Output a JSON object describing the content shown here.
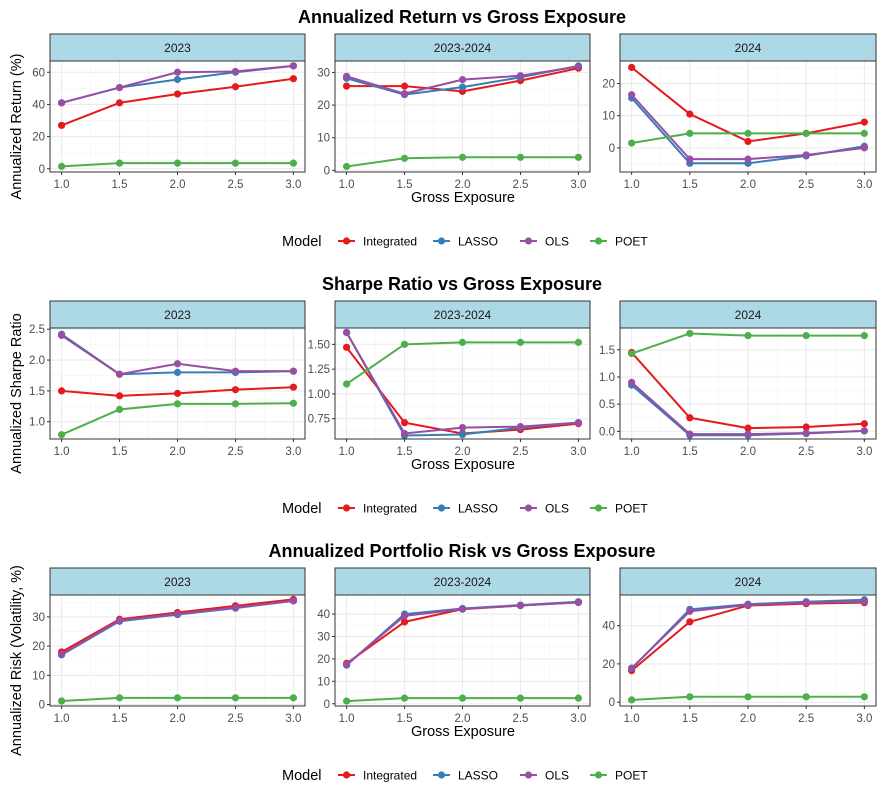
{
  "chart_data": [
    {
      "type": "line",
      "title": "Annualized Return vs Gross Exposure",
      "xlabel": "Gross Exposure",
      "ylabel": "Annualized Return (%)",
      "legend_title": "Model",
      "x": [
        1.0,
        1.5,
        2.0,
        2.5,
        3.0
      ],
      "x_tick_labels": [
        "1.0",
        "1.5",
        "2.0",
        "2.5",
        "3.0"
      ],
      "panels": [
        {
          "label": "2023",
          "ylim": [
            -2,
            67
          ],
          "y_ticks": [
            0,
            20,
            40,
            60
          ],
          "series": [
            {
              "name": "Integrated",
              "values": [
                27,
                41,
                46.5,
                51,
                56
              ]
            },
            {
              "name": "LASSO",
              "values": [
                41,
                50.5,
                55.5,
                60,
                64
              ]
            },
            {
              "name": "OLS",
              "values": [
                41,
                50.5,
                60,
                60.5,
                64
              ]
            },
            {
              "name": "POET",
              "values": [
                1.5,
                3.5,
                3.5,
                3.5,
                3.5
              ]
            }
          ]
        },
        {
          "label": "2023-2024",
          "ylim": [
            -0.5,
            33.5
          ],
          "y_ticks": [
            0,
            10,
            20,
            30
          ],
          "series": [
            {
              "name": "Integrated",
              "values": [
                25.8,
                25.8,
                24.2,
                27.5,
                31.3
              ]
            },
            {
              "name": "LASSO",
              "values": [
                28.2,
                23.2,
                25.5,
                28.5,
                32
              ]
            },
            {
              "name": "OLS",
              "values": [
                28.8,
                23.5,
                27.8,
                29,
                31.8
              ]
            },
            {
              "name": "POET",
              "values": [
                1.2,
                3.7,
                4,
                4,
                4
              ]
            }
          ]
        },
        {
          "label": "2024",
          "ylim": [
            -7.5,
            27
          ],
          "y_ticks": [
            0,
            10,
            20
          ],
          "series": [
            {
              "name": "Integrated",
              "values": [
                25,
                10.5,
                2,
                4.5,
                8
              ]
            },
            {
              "name": "LASSO",
              "values": [
                15.5,
                -4.8,
                -4.8,
                -2.5,
                0.5
              ]
            },
            {
              "name": "OLS",
              "values": [
                16.5,
                -3.5,
                -3.5,
                -2.2,
                0
              ]
            },
            {
              "name": "POET",
              "values": [
                1.5,
                4.5,
                4.5,
                4.5,
                4.5
              ]
            }
          ]
        }
      ]
    },
    {
      "type": "line",
      "title": "Sharpe Ratio vs Gross Exposure",
      "xlabel": "Gross Exposure",
      "ylabel": "Annualized Sharpe Ratio",
      "legend_title": "Model",
      "x": [
        1.0,
        1.5,
        2.0,
        2.5,
        3.0
      ],
      "x_tick_labels": [
        "1.0",
        "1.5",
        "2.0",
        "2.5",
        "3.0"
      ],
      "panels": [
        {
          "label": "2023",
          "ylim": [
            0.72,
            2.52
          ],
          "y_ticks": [
            1.0,
            1.5,
            2.0,
            2.5
          ],
          "y_tick_labels": [
            "1.0",
            "1.5",
            "2.0",
            "2.5"
          ],
          "series": [
            {
              "name": "Integrated",
              "values": [
                1.5,
                1.42,
                1.46,
                1.52,
                1.56
              ]
            },
            {
              "name": "LASSO",
              "values": [
                2.42,
                1.77,
                1.8,
                1.8,
                1.82
              ]
            },
            {
              "name": "OLS",
              "values": [
                2.4,
                1.77,
                1.94,
                1.82,
                1.82
              ]
            },
            {
              "name": "POET",
              "values": [
                0.79,
                1.2,
                1.29,
                1.29,
                1.3
              ]
            }
          ]
        },
        {
          "label": "2023-2024",
          "ylim": [
            0.545,
            1.665
          ],
          "y_ticks": [
            0.75,
            1.0,
            1.25,
            1.5
          ],
          "y_tick_labels": [
            "0.75",
            "1.00",
            "1.25",
            "1.50"
          ],
          "series": [
            {
              "name": "Integrated",
              "values": [
                1.47,
                0.71,
                0.6,
                0.64,
                0.7
              ]
            },
            {
              "name": "LASSO",
              "values": [
                1.62,
                0.58,
                0.59,
                0.66,
                0.71
              ]
            },
            {
              "name": "OLS",
              "values": [
                1.62,
                0.6,
                0.66,
                0.67,
                0.71
              ]
            },
            {
              "name": "POET",
              "values": [
                1.1,
                1.5,
                1.52,
                1.52,
                1.52
              ]
            }
          ]
        },
        {
          "label": "2024",
          "ylim": [
            -0.14,
            1.9
          ],
          "y_ticks": [
            0.0,
            0.5,
            1.0,
            1.5
          ],
          "y_tick_labels": [
            "0.0",
            "0.5",
            "1.0",
            "1.5"
          ],
          "series": [
            {
              "name": "Integrated",
              "values": [
                1.45,
                0.25,
                0.06,
                0.08,
                0.14
              ]
            },
            {
              "name": "LASSO",
              "values": [
                0.85,
                -0.07,
                -0.07,
                -0.04,
                0.01
              ]
            },
            {
              "name": "OLS",
              "values": [
                0.9,
                -0.05,
                -0.05,
                -0.03,
                0.01
              ]
            },
            {
              "name": "POET",
              "values": [
                1.43,
                1.8,
                1.76,
                1.76,
                1.76
              ]
            }
          ]
        }
      ]
    },
    {
      "type": "line",
      "title": "Annualized Portfolio Risk vs Gross Exposure",
      "xlabel": "Gross Exposure",
      "ylabel": "Annualized Risk (Volatility, %)",
      "legend_title": "Model",
      "x": [
        1.0,
        1.5,
        2.0,
        2.5,
        3.0
      ],
      "x_tick_labels": [
        "1.0",
        "1.5",
        "2.0",
        "2.5",
        "3.0"
      ],
      "panels": [
        {
          "label": "2023",
          "ylim": [
            -0.5,
            37.5
          ],
          "y_ticks": [
            0,
            10,
            20,
            30
          ],
          "series": [
            {
              "name": "Integrated",
              "values": [
                18,
                29.2,
                31.5,
                33.8,
                36
              ]
            },
            {
              "name": "LASSO",
              "values": [
                17,
                28.5,
                30.8,
                33,
                35.5
              ]
            },
            {
              "name": "OLS",
              "values": [
                17.2,
                28.8,
                31,
                33.2,
                35.5
              ]
            },
            {
              "name": "POET",
              "values": [
                1.2,
                2.3,
                2.3,
                2.3,
                2.3
              ]
            }
          ]
        },
        {
          "label": "2023-2024",
          "ylim": [
            -1,
            48.5
          ],
          "y_ticks": [
            0,
            10,
            20,
            30,
            40
          ],
          "series": [
            {
              "name": "Integrated",
              "values": [
                18,
                36.5,
                42.2,
                43.8,
                45.2
              ]
            },
            {
              "name": "LASSO",
              "values": [
                17.2,
                40,
                42.5,
                44,
                45.5
              ]
            },
            {
              "name": "OLS",
              "values": [
                17.5,
                39.2,
                42.2,
                43.8,
                45.2
              ]
            },
            {
              "name": "POET",
              "values": [
                1.2,
                2.5,
                2.5,
                2.5,
                2.5
              ]
            }
          ]
        },
        {
          "label": "2024",
          "ylim": [
            -2,
            56
          ],
          "y_ticks": [
            0,
            20,
            40
          ],
          "series": [
            {
              "name": "Integrated",
              "values": [
                16.5,
                42,
                50.5,
                51.5,
                52
              ]
            },
            {
              "name": "LASSO",
              "values": [
                17.5,
                48.5,
                51.2,
                52.5,
                53.5
              ]
            },
            {
              "name": "OLS",
              "values": [
                17.8,
                47.5,
                50.8,
                52,
                52.5
              ]
            },
            {
              "name": "POET",
              "values": [
                1.2,
                2.8,
                2.8,
                2.8,
                2.8
              ]
            }
          ]
        }
      ]
    }
  ],
  "legend": {
    "title": "Model",
    "entries": [
      {
        "name": "Integrated",
        "color": "#E41A1C"
      },
      {
        "name": "LASSO",
        "color": "#377EB8"
      },
      {
        "name": "OLS",
        "color": "#984EA3"
      },
      {
        "name": "POET",
        "color": "#4DAF4A"
      }
    ]
  },
  "colors": {
    "strip_fill": "#ADD8E6",
    "grid_major": "#EBEBEB",
    "grid_minor": "#F5F5F5",
    "panel_border": "#333333"
  }
}
